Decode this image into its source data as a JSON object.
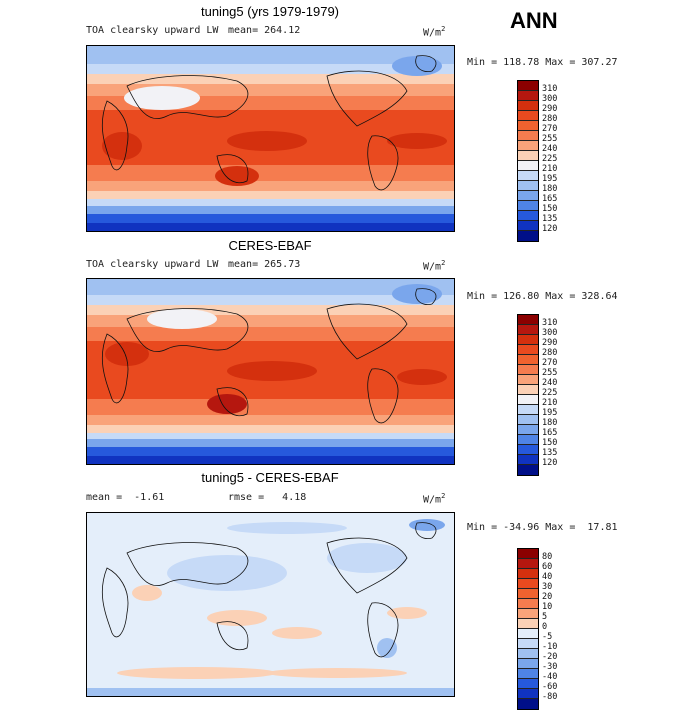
{
  "figure_label": "ANN",
  "chart_data": [
    {
      "type": "heatmap",
      "title": "tuning5 (yrs 1979-1979)",
      "variable": "TOA clearsky upward LW",
      "mean_label": "mean= 264.12",
      "units": "W/m",
      "units_exp": "2",
      "minmax": "Min = 118.78 Max = 307.27",
      "min": 118.78,
      "max": 307.27,
      "mean": 264.12,
      "levels": [
        "310",
        "300",
        "290",
        "280",
        "270",
        "255",
        "240",
        "225",
        "210",
        "195",
        "180",
        "165",
        "150",
        "135",
        "120"
      ],
      "colors": [
        "#8b0000",
        "#b5170f",
        "#d4300e",
        "#e94a1f",
        "#f0622f",
        "#f57c4f",
        "#f9a37a",
        "#fbd1b6",
        "#f2f2f6",
        "#c6daf7",
        "#a0c1f1",
        "#7aa6ec",
        "#4f84e6",
        "#2659dc",
        "#1033c0",
        "#000f88"
      ]
    },
    {
      "type": "heatmap",
      "title": "CERES-EBAF",
      "variable": "TOA clearsky upward LW",
      "mean_label": "mean= 265.73",
      "units": "W/m",
      "units_exp": "2",
      "minmax": "Min = 126.80 Max = 328.64",
      "min": 126.8,
      "max": 328.64,
      "mean": 265.73,
      "levels": [
        "310",
        "300",
        "290",
        "280",
        "270",
        "255",
        "240",
        "225",
        "210",
        "195",
        "180",
        "165",
        "150",
        "135",
        "120"
      ],
      "colors": [
        "#8b0000",
        "#b5170f",
        "#d4300e",
        "#e94a1f",
        "#f0622f",
        "#f57c4f",
        "#f9a37a",
        "#fbd1b6",
        "#f2f2f6",
        "#c6daf7",
        "#a0c1f1",
        "#7aa6ec",
        "#4f84e6",
        "#2659dc",
        "#1033c0",
        "#000f88"
      ]
    },
    {
      "type": "heatmap",
      "title": "tuning5 - CERES-EBAF",
      "mean_label": "mean =  -1.61",
      "rmse_label": "rmse =   4.18",
      "units": "W/m",
      "units_exp": "2",
      "minmax": "Min = -34.96 Max =  17.81",
      "min": -34.96,
      "max": 17.81,
      "mean": -1.61,
      "rmse": 4.18,
      "levels": [
        "80",
        "60",
        "40",
        "30",
        "20",
        "10",
        "5",
        "0",
        "-5",
        "-10",
        "-20",
        "-30",
        "-40",
        "-60",
        "-80"
      ],
      "colors": [
        "#8b0000",
        "#b5170f",
        "#d4300e",
        "#e94a1f",
        "#f0622f",
        "#f57c4f",
        "#f9a37a",
        "#fbd1b6",
        "#e4eefa",
        "#c6daf7",
        "#a0c1f1",
        "#7aa6ec",
        "#4f84e6",
        "#2659dc",
        "#1033c0",
        "#000f88"
      ]
    }
  ]
}
